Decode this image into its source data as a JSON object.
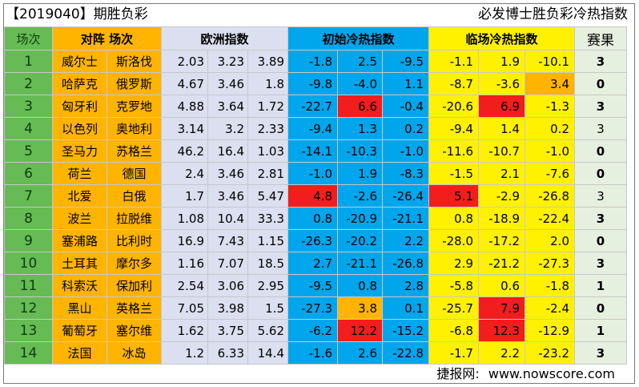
{
  "title": "【2019040】期胜负彩",
  "subtitle": "必发博士胜负彩冷热指数",
  "headers": {
    "index": "场次",
    "teams": "对阵  场次",
    "euro": "欧洲指数",
    "initial": "初始冷热指数",
    "closing": "临场冷热指数",
    "result": "赛果"
  },
  "rows": [
    {
      "n": "1",
      "home": "威尔士",
      "away": "斯洛伐",
      "euro": [
        "2.03",
        "3.23",
        "3.89"
      ],
      "init": [
        "-1.8",
        "2.5",
        "-9.5"
      ],
      "close": [
        "-1.1",
        "1.9",
        "-10.1"
      ],
      "result": "3"
    },
    {
      "n": "2",
      "home": "哈萨克",
      "away": "俄罗斯",
      "euro": [
        "4.67",
        "3.46",
        "1.8"
      ],
      "init": [
        "-9.8",
        "-4.0",
        "1.1"
      ],
      "close": [
        "-8.7",
        "-3.6",
        "3.4"
      ],
      "result": "0"
    },
    {
      "n": "3",
      "home": "匈牙利",
      "away": "克罗地",
      "euro": [
        "4.88",
        "3.64",
        "1.72"
      ],
      "init": [
        "-22.7",
        "6.6",
        "-0.4"
      ],
      "close": [
        "-20.6",
        "6.9",
        "-1.3"
      ],
      "result": "3"
    },
    {
      "n": "4",
      "home": "以色列",
      "away": "奥地利",
      "euro": [
        "3.14",
        "3.2",
        "2.33"
      ],
      "init": [
        "-9.4",
        "1.3",
        "0.2"
      ],
      "close": [
        "-9.4",
        "1.4",
        "0.2"
      ],
      "result": "3"
    },
    {
      "n": "5",
      "home": "圣马力",
      "away": "苏格兰",
      "euro": [
        "46.2",
        "16.4",
        "1.03"
      ],
      "init": [
        "-14.1",
        "-10.3",
        "-1.0"
      ],
      "close": [
        "-11.6",
        "-10.7",
        "-1.0"
      ],
      "result": "0"
    },
    {
      "n": "6",
      "home": "荷兰",
      "away": "德国",
      "euro": [
        "2.4",
        "3.46",
        "2.81"
      ],
      "init": [
        "-1.0",
        "1.9",
        "-8.3"
      ],
      "close": [
        "-1.5",
        "2.1",
        "-7.6"
      ],
      "result": "0"
    },
    {
      "n": "7",
      "home": "北爱",
      "away": "白俄",
      "euro": [
        "1.7",
        "3.46",
        "5.47"
      ],
      "init": [
        "4.8",
        "-2.6",
        "-26.4"
      ],
      "close": [
        "5.1",
        "-2.9",
        "-26.8"
      ],
      "result": "3"
    },
    {
      "n": "8",
      "home": "波兰",
      "away": "拉脱维",
      "euro": [
        "1.08",
        "10.4",
        "33.3"
      ],
      "init": [
        "0.8",
        "-20.9",
        "-21.1"
      ],
      "close": [
        "0.8",
        "-18.9",
        "-22.4"
      ],
      "result": "3"
    },
    {
      "n": "9",
      "home": "塞浦路",
      "away": "比利时",
      "euro": [
        "16.9",
        "7.43",
        "1.15"
      ],
      "init": [
        "-26.3",
        "-20.2",
        "2.2"
      ],
      "close": [
        "-28.0",
        "-17.2",
        "2.0"
      ],
      "result": "0"
    },
    {
      "n": "10",
      "home": "土耳其",
      "away": "摩尔多",
      "euro": [
        "1.16",
        "7.07",
        "18.5"
      ],
      "init": [
        "2.7",
        "-21.1",
        "-26.8"
      ],
      "close": [
        "2.9",
        "-21.2",
        "-27.3"
      ],
      "result": "3"
    },
    {
      "n": "11",
      "home": "科索沃",
      "away": "保加利",
      "euro": [
        "2.54",
        "3.06",
        "2.95"
      ],
      "init": [
        "-9.5",
        "0.8",
        "2.8"
      ],
      "close": [
        "-5.8",
        "0.6",
        "-1.8"
      ],
      "result": "1"
    },
    {
      "n": "12",
      "home": "黑山",
      "away": "英格兰",
      "euro": [
        "7.05",
        "3.98",
        "1.5"
      ],
      "init": [
        "-27.3",
        "3.8",
        "0.1"
      ],
      "close": [
        "-25.7",
        "7.9",
        "-2.4"
      ],
      "result": "0"
    },
    {
      "n": "13",
      "home": "葡萄牙",
      "away": "塞尔维",
      "euro": [
        "1.62",
        "3.75",
        "5.62"
      ],
      "init": [
        "-6.2",
        "12.2",
        "-15.2"
      ],
      "close": [
        "-6.8",
        "12.3",
        "-12.9"
      ],
      "result": "1"
    },
    {
      "n": "14",
      "home": "法国",
      "away": "冰岛",
      "euro": [
        "1.2",
        "6.33",
        "14.4"
      ],
      "init": [
        "-1.6",
        "2.6",
        "-22.8"
      ],
      "close": [
        "-1.7",
        "2.2",
        "-23.2"
      ],
      "result": "3"
    }
  ],
  "highlights": {
    "red": [
      "2.init.1",
      "2.close.1",
      "6.init.0",
      "6.close.0",
      "11.close.1",
      "12.init.1",
      "12.close.1"
    ],
    "orange": [
      "1.close.2",
      "11.init.1"
    ]
  },
  "colors": {
    "index_bg": "#66bb55",
    "team_bg": "#ffb400",
    "euro_bg": "#dcdff0",
    "initial_bg": "#00a6ec",
    "closing_bg": "#fff100",
    "result_bg": "#e6f0df",
    "hot_red": "#f21d1d",
    "warm_orange": "#ffb400"
  },
  "footer": {
    "label": "捷报网:",
    "url": "www.nowscore.com"
  }
}
